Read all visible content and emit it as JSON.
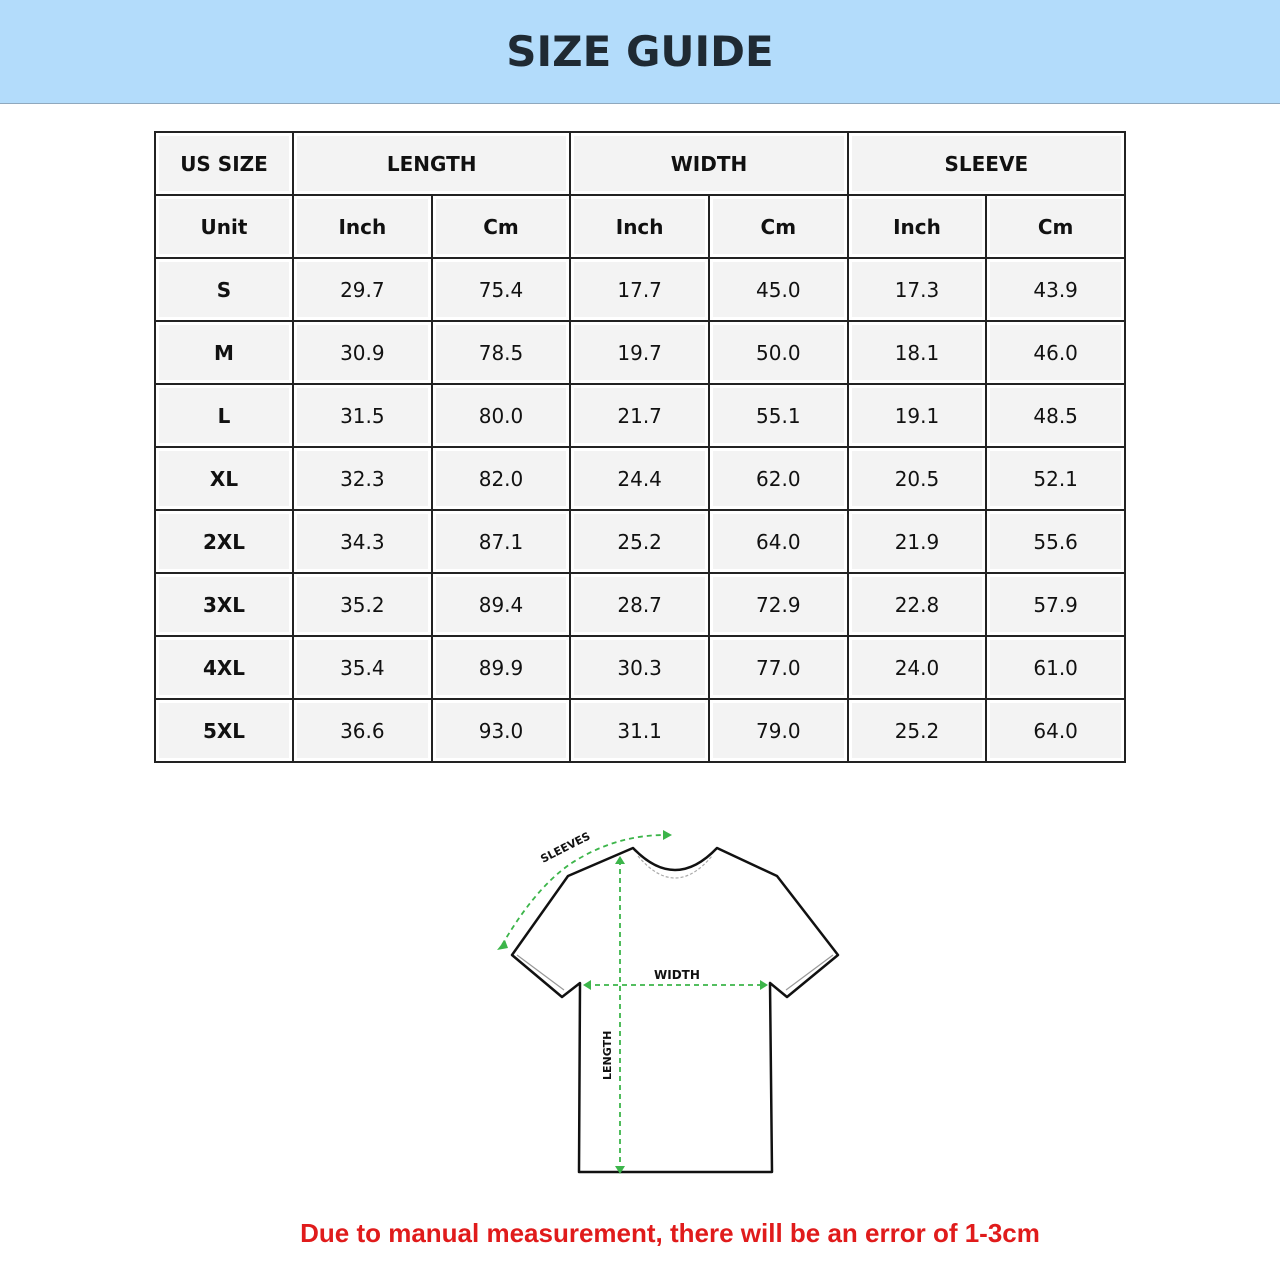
{
  "title": "SIZE GUIDE",
  "table": {
    "group_headers": [
      "US SIZE",
      "LENGTH",
      "WIDTH",
      "SLEEVE"
    ],
    "unit_row": [
      "Unit",
      "Inch",
      "Cm",
      "Inch",
      "Cm",
      "Inch",
      "Cm"
    ],
    "rows": [
      [
        "S",
        "29.7",
        "75.4",
        "17.7",
        "45.0",
        "17.3",
        "43.9"
      ],
      [
        "M",
        "30.9",
        "78.5",
        "19.7",
        "50.0",
        "18.1",
        "46.0"
      ],
      [
        "L",
        "31.5",
        "80.0",
        "21.7",
        "55.1",
        "19.1",
        "48.5"
      ],
      [
        "XL",
        "32.3",
        "82.0",
        "24.4",
        "62.0",
        "20.5",
        "52.1"
      ],
      [
        "2XL",
        "34.3",
        "87.1",
        "25.2",
        "64.0",
        "21.9",
        "55.6"
      ],
      [
        "3XL",
        "35.2",
        "89.4",
        "28.7",
        "72.9",
        "22.8",
        "57.9"
      ],
      [
        "4XL",
        "35.4",
        "89.9",
        "30.3",
        "77.0",
        "24.0",
        "61.0"
      ],
      [
        "5XL",
        "36.6",
        "93.0",
        "31.1",
        "79.0",
        "25.2",
        "64.0"
      ]
    ]
  },
  "diagram": {
    "sleeves_label": "SLEEVES",
    "width_label": "WIDTH",
    "length_label": "LENGTH",
    "measure_color": "#3cb54a"
  },
  "note": "Due to manual measurement, there will be an error of 1-3cm",
  "colors": {
    "banner": "#b3dcfb",
    "note": "#e01b1b"
  }
}
